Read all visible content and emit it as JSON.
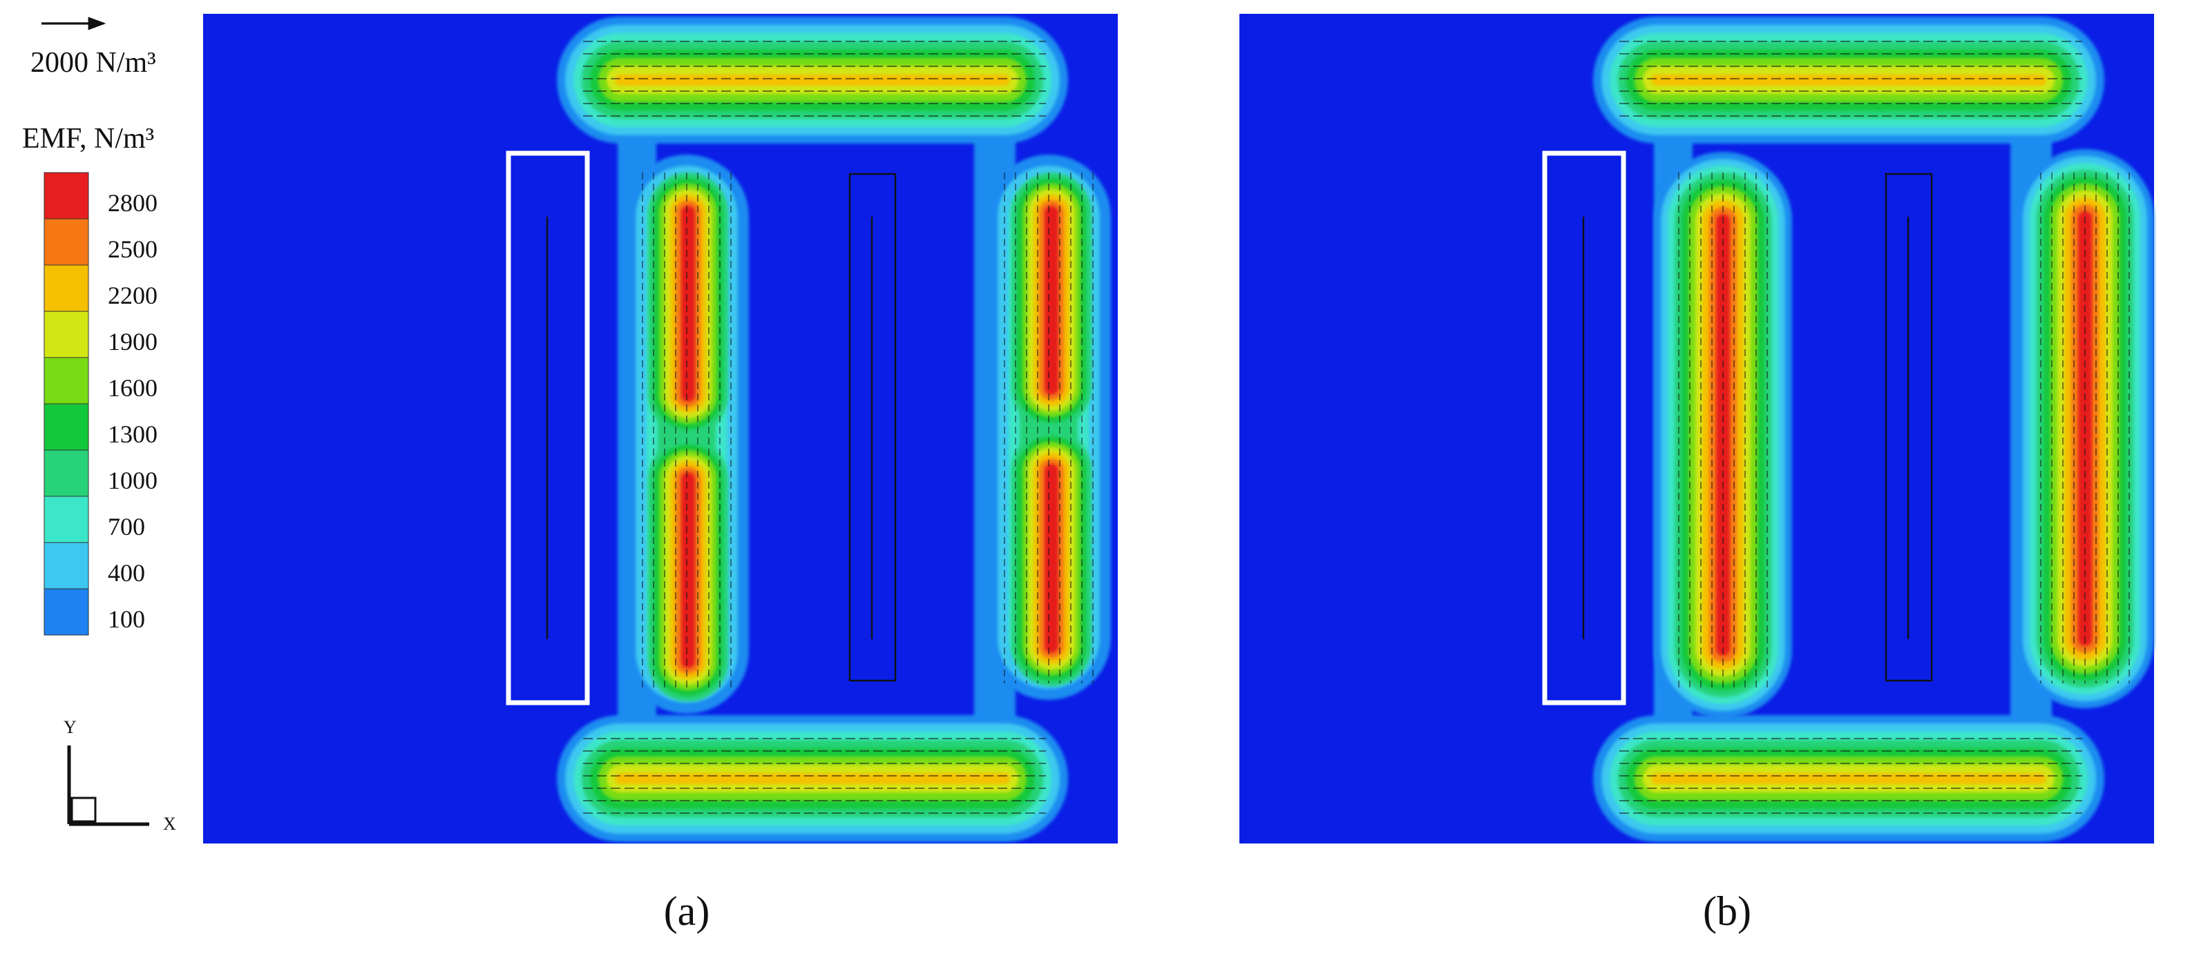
{
  "scale_arrow": {
    "label": "2000 N/m³"
  },
  "colorbar": {
    "title": "EMF, N/m³",
    "levels": [
      "2800",
      "2500",
      "2200",
      "1900",
      "1600",
      "1300",
      "1000",
      "700",
      "400",
      "100"
    ],
    "colors": [
      "#e61e1e",
      "#f57814",
      "#f5c000",
      "#d2e614",
      "#78dc14",
      "#14c83c",
      "#28d278",
      "#3ce6c8",
      "#3cc8f0",
      "#1e82f0"
    ]
  },
  "axes_triad": {
    "y": "Y",
    "x": "X"
  },
  "panels": [
    {
      "label": "(a)"
    },
    {
      "label": "(b)"
    }
  ]
}
